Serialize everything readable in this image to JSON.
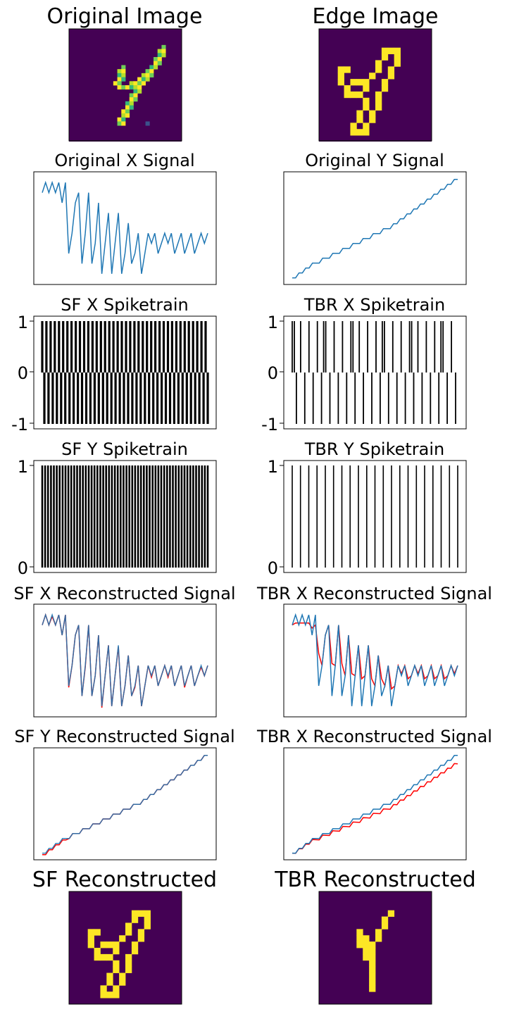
{
  "panels": {
    "original_image": {
      "title": "Original Image"
    },
    "edge_image": {
      "title": "Edge Image"
    },
    "original_x": {
      "title": "Original X Signal"
    },
    "original_y": {
      "title": "Original Y Signal"
    },
    "sf_x_spike": {
      "title": "SF X Spiketrain",
      "yticks": [
        "1",
        "0",
        "-1"
      ]
    },
    "tbr_x_spike": {
      "title": "TBR X Spiketrain",
      "yticks": [
        "1",
        "0",
        "-1"
      ]
    },
    "sf_y_spike": {
      "title": "SF Y Spiketrain",
      "yticks": [
        "1",
        "0"
      ]
    },
    "tbr_y_spike": {
      "title": "TBR Y Spiketrain",
      "yticks": [
        "1",
        "0"
      ]
    },
    "sf_x_recon": {
      "title": "SF X Reconstructed Signal"
    },
    "tbr_x_recon": {
      "title": "TBR X Reconstructed Signal"
    },
    "sf_y_recon": {
      "title": "SF Y Reconstructed Signal"
    },
    "tbr_y_recon": {
      "title": "TBR X Reconstructed Signal"
    },
    "sf_recon_image": {
      "title": "SF Reconstructed"
    },
    "tbr_recon_image": {
      "title": "TBR Reconstructed"
    }
  },
  "colors": {
    "signal": "#1f77b4",
    "reconstruction": "#ff0000",
    "spike": "#000000",
    "img_bg": "#440154",
    "img_fg": "#fde725"
  },
  "chart_data": [
    {
      "type": "heatmap",
      "id": "original_image",
      "title": "Original Image",
      "grid": [
        28,
        28
      ],
      "stroke_cells": [
        [
          4,
          23
        ],
        [
          5,
          22
        ],
        [
          5,
          23
        ],
        [
          6,
          22
        ],
        [
          6,
          23
        ],
        [
          7,
          21
        ],
        [
          7,
          22
        ],
        [
          8,
          21
        ],
        [
          8,
          22
        ],
        [
          9,
          13
        ],
        [
          9,
          20
        ],
        [
          9,
          21
        ],
        [
          10,
          12
        ],
        [
          10,
          13
        ],
        [
          10,
          19
        ],
        [
          10,
          20
        ],
        [
          11,
          12
        ],
        [
          11,
          13
        ],
        [
          11,
          18
        ],
        [
          11,
          19
        ],
        [
          11,
          20
        ],
        [
          12,
          12
        ],
        [
          12,
          13
        ],
        [
          12,
          17
        ],
        [
          12,
          18
        ],
        [
          12,
          19
        ],
        [
          13,
          11
        ],
        [
          13,
          12
        ],
        [
          13,
          15
        ],
        [
          13,
          16
        ],
        [
          13,
          17
        ],
        [
          13,
          18
        ],
        [
          14,
          12
        ],
        [
          14,
          13
        ],
        [
          14,
          14
        ],
        [
          14,
          15
        ],
        [
          14,
          16
        ],
        [
          14,
          17
        ],
        [
          15,
          16
        ],
        [
          15,
          17
        ],
        [
          16,
          15
        ],
        [
          16,
          16
        ],
        [
          17,
          15
        ],
        [
          17,
          16
        ],
        [
          18,
          14
        ],
        [
          18,
          15
        ],
        [
          19,
          14
        ],
        [
          19,
          15
        ],
        [
          20,
          13
        ],
        [
          20,
          14
        ],
        [
          21,
          13
        ],
        [
          21,
          14
        ],
        [
          22,
          12
        ],
        [
          22,
          13
        ],
        [
          23,
          12
        ],
        [
          23,
          13
        ],
        [
          23,
          19
        ]
      ]
    },
    {
      "type": "heatmap",
      "id": "edge_image",
      "title": "Edge Image",
      "grid": [
        18,
        18
      ]
    },
    {
      "type": "line",
      "id": "original_x",
      "title": "Original X Signal",
      "series": [
        {
          "values": [
            12,
            13,
            12,
            13,
            12,
            13,
            11,
            13,
            6,
            8,
            11,
            12,
            5,
            8,
            12,
            5,
            7,
            11,
            4,
            7,
            10,
            4,
            7,
            10,
            4,
            6,
            9,
            5,
            6,
            8,
            4,
            6,
            8,
            7,
            8,
            6,
            7,
            8,
            7,
            8,
            6,
            7,
            8,
            6,
            7,
            8,
            6,
            7,
            8,
            7,
            8
          ]
        }
      ]
    },
    {
      "type": "line",
      "id": "original_y",
      "title": "Original Y Signal",
      "series": [
        {
          "values": [
            1,
            1,
            2,
            2,
            3,
            3,
            4,
            4,
            4,
            5,
            5,
            5,
            6,
            6,
            6,
            7,
            7,
            7,
            8,
            8,
            8,
            9,
            9,
            9,
            10,
            10,
            10,
            11,
            11,
            11,
            12,
            12,
            13,
            13,
            14,
            14,
            15,
            15,
            16,
            16,
            17,
            17,
            18,
            18,
            19,
            19,
            20,
            20,
            21,
            21
          ]
        }
      ]
    },
    {
      "type": "bar",
      "id": "sf_x_spike",
      "title": "SF X Spiketrain",
      "ylim": [
        -1,
        1
      ]
    },
    {
      "type": "bar",
      "id": "tbr_x_spike",
      "title": "TBR X Spiketrain",
      "ylim": [
        -1,
        1
      ]
    },
    {
      "type": "bar",
      "id": "sf_y_spike",
      "title": "SF Y Spiketrain",
      "ylim": [
        0,
        1
      ]
    },
    {
      "type": "bar",
      "id": "tbr_y_spike",
      "title": "TBR Y Spiketrain",
      "ylim": [
        0,
        1
      ]
    },
    {
      "type": "line",
      "id": "sf_x_recon",
      "title": "SF X Reconstructed Signal"
    },
    {
      "type": "line",
      "id": "tbr_x_recon",
      "title": "TBR X Reconstructed Signal"
    },
    {
      "type": "line",
      "id": "sf_y_recon",
      "title": "SF Y Reconstructed Signal"
    },
    {
      "type": "line",
      "id": "tbr_y_recon",
      "title": "TBR X Reconstructed Signal"
    },
    {
      "type": "heatmap",
      "id": "sf_recon_image",
      "title": "SF Reconstructed",
      "grid": [
        18,
        18
      ]
    },
    {
      "type": "heatmap",
      "id": "tbr_recon_image",
      "title": "TBR Reconstructed",
      "grid": [
        18,
        18
      ]
    }
  ]
}
